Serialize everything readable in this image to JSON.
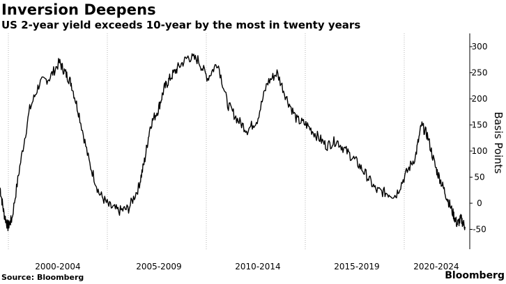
{
  "header": {
    "title": "Inversion Deepens",
    "subtitle": "US 2-year yield exceeds 10-year by the most in twenty years"
  },
  "footer": {
    "source": "Source: Bloomberg",
    "brand": "Bloomberg"
  },
  "chart_data": {
    "type": "line",
    "title": "Inversion Deepens",
    "subtitle": "US 2-year yield exceeds 10-year by the most in twenty years",
    "ylabel": "Basis Points",
    "xlabel": "",
    "ylim": [
      -70,
      315
    ],
    "y_ticks": [
      300,
      250,
      200,
      150,
      100,
      50,
      0,
      -50
    ],
    "y_tick_labels": [
      "300",
      "250",
      "200",
      "150",
      "100",
      "50",
      "0",
      "-50"
    ],
    "x_tick_labels": [
      "2000-2004",
      "2005-2009",
      "2010-2014",
      "2015-2019",
      "2020-2024"
    ],
    "xlim": [
      2000.0,
      2023.6
    ],
    "gridlines": "vertical, dotted",
    "line_color": "#000000",
    "series": [
      {
        "x": [
          2000.0,
          2000.2,
          2000.4,
          2000.6,
          2001.0,
          2001.5,
          2002.0,
          2002.5,
          2003.0,
          2003.3,
          2003.6,
          2004.0,
          2004.5,
          2005.0,
          2005.5,
          2006.0,
          2006.5,
          2007.0,
          2007.3,
          2007.6,
          2008.0,
          2008.3,
          2008.6,
          2009.0,
          2009.5,
          2010.0,
          2010.5,
          2011.0,
          2011.5,
          2012.0,
          2012.5,
          2013.0,
          2013.5,
          2014.0,
          2014.5,
          2015.0,
          2015.5,
          2016.0,
          2016.5,
          2017.0,
          2017.5,
          2018.0,
          2018.5,
          2019.0,
          2019.5,
          2020.0,
          2020.5,
          2021.0,
          2021.3,
          2021.6,
          2022.0,
          2022.3,
          2022.6,
          2022.9,
          2023.1,
          2023.3,
          2023.5
        ],
        "y": [
          30,
          -20,
          -45,
          -30,
          70,
          180,
          230,
          240,
          270,
          250,
          230,
          170,
          80,
          20,
          -5,
          -15,
          -10,
          30,
          80,
          150,
          180,
          220,
          240,
          260,
          280,
          275,
          240,
          270,
          190,
          160,
          140,
          160,
          230,
          250,
          200,
          160,
          150,
          130,
          110,
          120,
          100,
          80,
          55,
          25,
          20,
          15,
          55,
          90,
          150,
          130,
          70,
          40,
          10,
          -20,
          -40,
          -30,
          -45
        ]
      }
    ]
  }
}
